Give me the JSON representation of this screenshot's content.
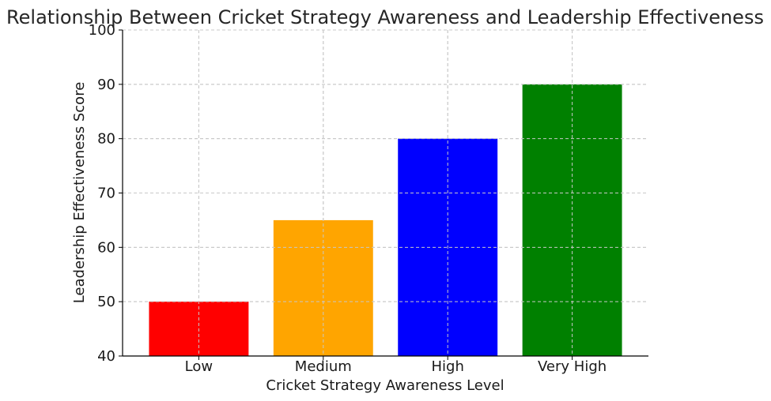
{
  "chart_data": {
    "type": "bar",
    "title": "Relationship Between Cricket Strategy Awareness and Leadership Effectiveness",
    "xlabel": "Cricket Strategy Awareness Level",
    "ylabel": "Leadership Effectiveness Score",
    "categories": [
      "Low",
      "Medium",
      "High",
      "Very High"
    ],
    "values": [
      50,
      65,
      80,
      90
    ],
    "colors": [
      "#ff0000",
      "#ffa500",
      "#0000ff",
      "#008000"
    ],
    "ylim": [
      40,
      100
    ],
    "yticks": [
      40,
      50,
      60,
      70,
      80,
      90,
      100
    ],
    "grid": true
  }
}
